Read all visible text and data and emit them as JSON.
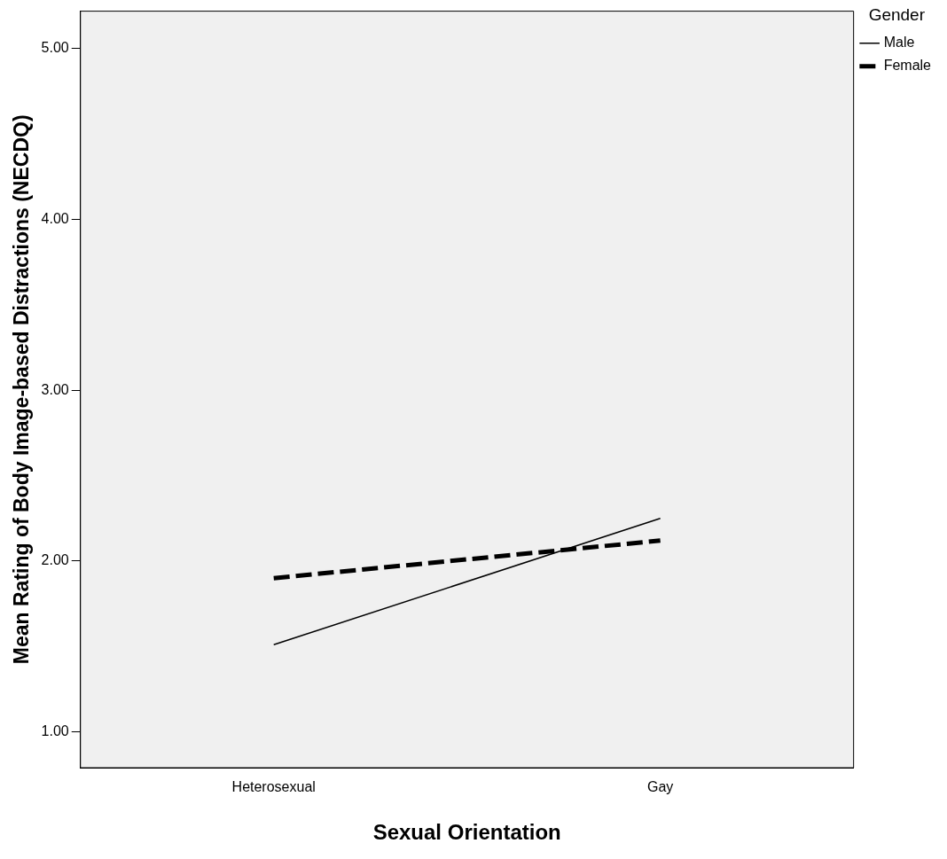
{
  "chart_data": {
    "type": "line",
    "xlabel": "Sexual Orientation",
    "ylabel": "Mean Rating of Body Image-based Distractions (NECDQ)",
    "legend_title": "Gender",
    "categories": [
      "Heterosexual",
      "Gay"
    ],
    "series": [
      {
        "name": "Male",
        "color": "#000000",
        "values": [
          1.51,
          2.25
        ],
        "line_style": "solid"
      },
      {
        "name": "Female",
        "color": "#000000",
        "values": [
          1.9,
          2.12
        ],
        "line_style": "dashed"
      }
    ],
    "ylim": [
      0.79,
      5.22
    ],
    "yticks": [
      {
        "value": 1,
        "label": "1.00"
      },
      {
        "value": 2,
        "label": "2.00"
      },
      {
        "value": 3,
        "label": "3.00"
      },
      {
        "value": 4,
        "label": "4.00"
      },
      {
        "value": 5,
        "label": "5.00"
      }
    ],
    "grid": false,
    "legend": "top right",
    "marker": "none"
  }
}
